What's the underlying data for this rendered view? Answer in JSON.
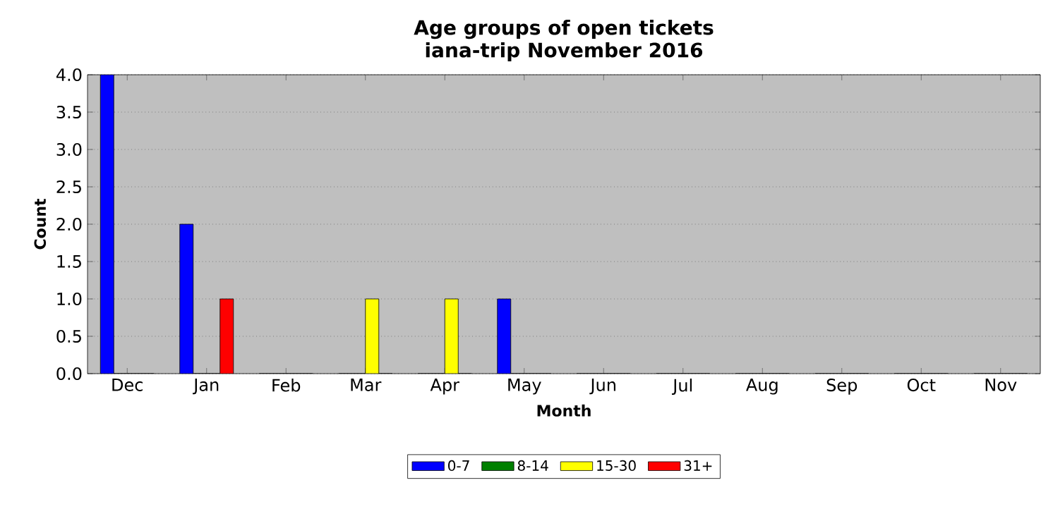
{
  "chart_data": {
    "type": "bar",
    "title": "Age groups of open tickets",
    "subtitle": "iana-trip November 2016",
    "xlabel": "Month",
    "ylabel": "Count",
    "categories": [
      "Dec",
      "Jan",
      "Feb",
      "Mar",
      "Apr",
      "May",
      "Jun",
      "Jul",
      "Aug",
      "Sep",
      "Oct",
      "Nov"
    ],
    "series": [
      {
        "name": "0-7",
        "color": "#0000ff",
        "values": [
          4,
          2,
          0,
          0,
          0,
          1,
          0,
          0,
          0,
          0,
          0,
          0
        ]
      },
      {
        "name": "8-14",
        "color": "#008000",
        "values": [
          0,
          0,
          0,
          0,
          0,
          0,
          0,
          0,
          0,
          0,
          0,
          0
        ]
      },
      {
        "name": "15-30",
        "color": "#ffff00",
        "values": [
          0,
          0,
          0,
          1,
          1,
          0,
          0,
          0,
          0,
          0,
          0,
          0
        ]
      },
      {
        "name": "31+",
        "color": "#ff0000",
        "values": [
          0,
          1,
          0,
          0,
          0,
          0,
          0,
          0,
          0,
          0,
          0,
          0
        ]
      }
    ],
    "ylim": [
      0,
      4
    ],
    "yticks": [
      {
        "value": 0,
        "label": "0.0"
      },
      {
        "value": 0.5,
        "label": "0.5"
      },
      {
        "value": 1,
        "label": "1.0"
      },
      {
        "value": 1.5,
        "label": "1.5"
      },
      {
        "value": 2,
        "label": "2.0"
      },
      {
        "value": 2.5,
        "label": "2.5"
      },
      {
        "value": 3,
        "label": "3.0"
      },
      {
        "value": 3.5,
        "label": "3.5"
      },
      {
        "value": 4,
        "label": "4.0"
      }
    ],
    "grid": "y",
    "legend": "bottom"
  }
}
